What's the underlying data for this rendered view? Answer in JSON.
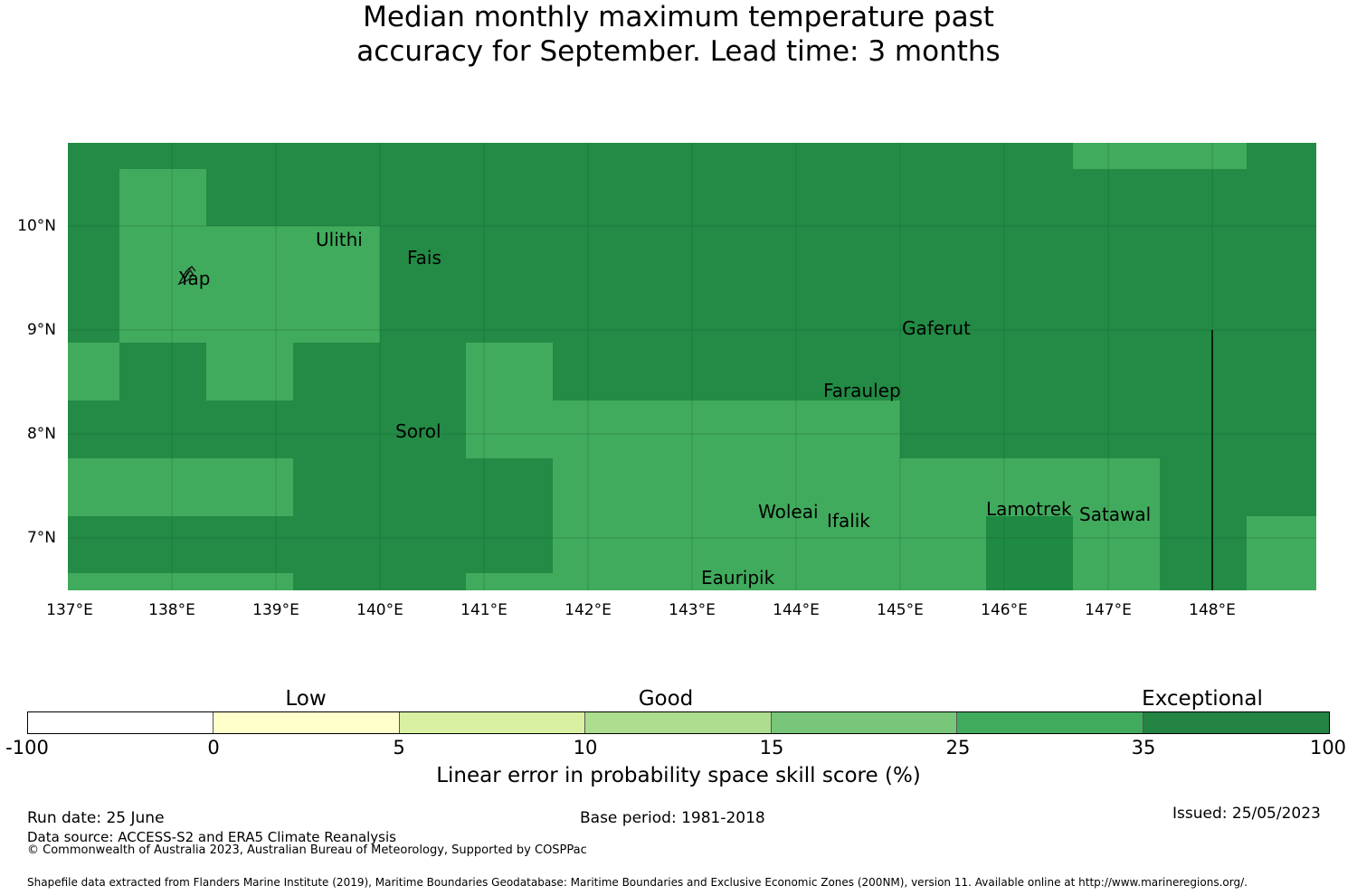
{
  "title_line1": "Median monthly maximum temperature past",
  "title_line2": "accuracy for September. Lead time: 3 months",
  "map": {
    "lon_range": [
      137,
      149
    ],
    "lat_range": [
      6.5,
      10.8
    ],
    "y_ticks": [
      "10°N",
      "9°N",
      "8°N",
      "7°N"
    ],
    "x_ticks": [
      "137°E",
      "138°E",
      "139°E",
      "140°E",
      "141°E",
      "142°E",
      "143°E",
      "144°E",
      "145°E",
      "146°E",
      "147°E",
      "148°E"
    ],
    "colors": {
      "exceptional": "#238b45",
      "good_high": "#41ab5d",
      "darker": "#1e8441"
    },
    "places": [
      "Ulithi",
      "Fais",
      "Yap",
      "Gaferut",
      "Faraulep",
      "Sorol",
      "Woleai",
      "Ifalik",
      "Lamotrek",
      "Satawal",
      "Eauripik"
    ]
  },
  "legend": {
    "categories": [
      "Low",
      "Good",
      "Exceptional"
    ],
    "ticks": [
      "-100",
      "0",
      "5",
      "10",
      "15",
      "25",
      "35",
      "100"
    ],
    "colors": [
      "#ffffff",
      "#ffffcc",
      "#d9f0a3",
      "#addd8e",
      "#78c679",
      "#41ab5d",
      "#238443"
    ],
    "label": "Linear error in probability space skill score (%)"
  },
  "footer": {
    "run_date": "Run date: 25 June",
    "base_period": "Base period: 1981-2018",
    "issued": "Issued: 25/05/2023",
    "data_source": "Data source: ACCESS-S2 and ERA5 Climate Reanalysis",
    "copyright": "© Commonwealth of Australia 2023, Australian Bureau of Meteorology, Supported by COSPPac",
    "shapefile": "Shapefile data extracted from Flanders Marine Institute (2019), Maritime Boundaries Geodatabase: Maritime Boundaries and Exclusive Economic Zones (200NM), version 11. Available online at http://www.marineregions.org/."
  }
}
